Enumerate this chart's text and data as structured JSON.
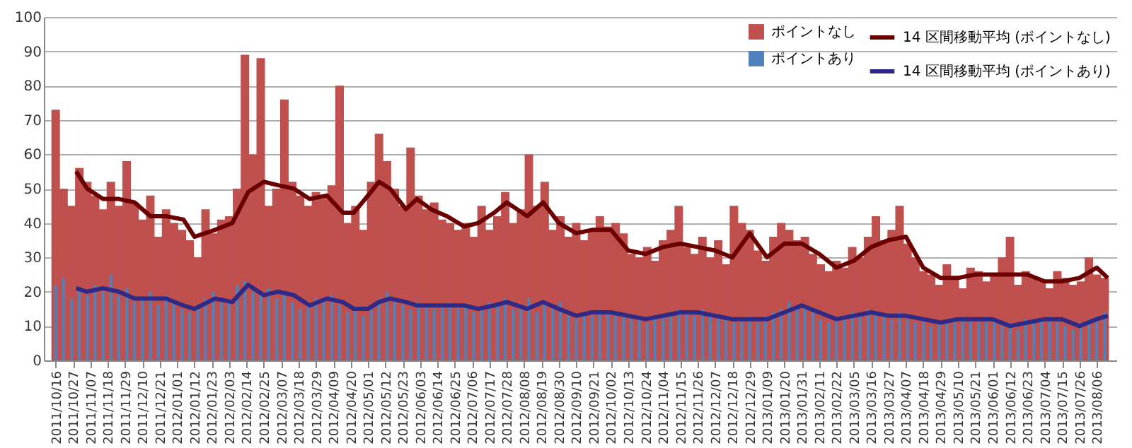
{
  "chart_data": {
    "type": "bar",
    "legend": "top right",
    "grid": "y",
    "ylim": [
      0,
      100
    ],
    "yticks": [
      0,
      10,
      20,
      30,
      40,
      50,
      60,
      70,
      80,
      90,
      100
    ],
    "xlim": [
      "2011-10-13",
      "2013-08-14"
    ],
    "xticks": [
      {
        "value": "2011-10-16",
        "label": "2011/10/16"
      },
      {
        "value": "2011-10-27",
        "label": "2011/10/27"
      },
      {
        "value": "2011-11-07",
        "label": "2011/11/07"
      },
      {
        "value": "2011-11-18",
        "label": "2011/11/18"
      },
      {
        "value": "2011-11-29",
        "label": "2011/11/29"
      },
      {
        "value": "2011-12-10",
        "label": "2011/12/10"
      },
      {
        "value": "2011-12-21",
        "label": "2011/12/21"
      },
      {
        "value": "2012-01-01",
        "label": "2012/01/01"
      },
      {
        "value": "2012-01-12",
        "label": "2012/01/12"
      },
      {
        "value": "2012-01-23",
        "label": "2012/01/23"
      },
      {
        "value": "2012-02-03",
        "label": "2012/02/03"
      },
      {
        "value": "2012-02-14",
        "label": "2012/02/14"
      },
      {
        "value": "2012-02-25",
        "label": "2012/02/25"
      },
      {
        "value": "2012-03-07",
        "label": "2012/03/07"
      },
      {
        "value": "2012-03-18",
        "label": "2012/03/18"
      },
      {
        "value": "2012-03-29",
        "label": "2012/03/29"
      },
      {
        "value": "2012-04-09",
        "label": "2012/04/09"
      },
      {
        "value": "2012-04-20",
        "label": "2012/04/20"
      },
      {
        "value": "2012-05-01",
        "label": "2012/05/01"
      },
      {
        "value": "2012-05-12",
        "label": "2012/05/12"
      },
      {
        "value": "2012-05-23",
        "label": "2012/05/23"
      },
      {
        "value": "2012-06-03",
        "label": "2012/06/03"
      },
      {
        "value": "2012-06-14",
        "label": "2012/06/14"
      },
      {
        "value": "2012-06-25",
        "label": "2012/06/25"
      },
      {
        "value": "2012-07-06",
        "label": "2012/07/06"
      },
      {
        "value": "2012-07-17",
        "label": "2012/07/17"
      },
      {
        "value": "2012-07-28",
        "label": "2012/07/28"
      },
      {
        "value": "2012-08-08",
        "label": "2012/08/08"
      },
      {
        "value": "2012-08-19",
        "label": "2012/08/19"
      },
      {
        "value": "2012-08-30",
        "label": "2012/08/30"
      },
      {
        "value": "2012-09-10",
        "label": "2012/09/10"
      },
      {
        "value": "2012-09-21",
        "label": "2012/09/21"
      },
      {
        "value": "2012-10-02",
        "label": "2012/10/02"
      },
      {
        "value": "2012-10-13",
        "label": "2012/10/13"
      },
      {
        "value": "2012-10-24",
        "label": "2012/10/24"
      },
      {
        "value": "2012-11-04",
        "label": "2012/11/04"
      },
      {
        "value": "2012-11-15",
        "label": "2012/11/15"
      },
      {
        "value": "2012-11-26",
        "label": "2012/11/26"
      },
      {
        "value": "2012-12-07",
        "label": "2012/12/07"
      },
      {
        "value": "2012-12-18",
        "label": "2012/12/18"
      },
      {
        "value": "2012-12-29",
        "label": "2012/12/29"
      },
      {
        "value": "2013-01-09",
        "label": "2013/01/09"
      },
      {
        "value": "2013-01-20",
        "label": "2013/01/20"
      },
      {
        "value": "2013-01-31",
        "label": "2013/01/31"
      },
      {
        "value": "2013-02-11",
        "label": "2013/02/11"
      },
      {
        "value": "2013-02-22",
        "label": "2013/02/22"
      },
      {
        "value": "2013-03-05",
        "label": "2013/03/05"
      },
      {
        "value": "2013-03-16",
        "label": "2013/03/16"
      },
      {
        "value": "2013-03-27",
        "label": "2013/03/27"
      },
      {
        "value": "2013-04-07",
        "label": "2013/04/07"
      },
      {
        "value": "2013-04-18",
        "label": "2013/04/18"
      },
      {
        "value": "2013-04-29",
        "label": "2013/04/29"
      },
      {
        "value": "2013-05-10",
        "label": "2013/05/10"
      },
      {
        "value": "2013-05-21",
        "label": "2013/05/21"
      },
      {
        "value": "2013-06-01",
        "label": "2013/06/01"
      },
      {
        "value": "2013-06-12",
        "label": "2013/06/12"
      },
      {
        "value": "2013-06-23",
        "label": "2013/06/23"
      },
      {
        "value": "2013-07-04",
        "label": "2013/07/04"
      },
      {
        "value": "2013-07-15",
        "label": "2013/07/15"
      },
      {
        "value": "2013-07-26",
        "label": "2013/07/26"
      },
      {
        "value": "2013-08-06",
        "label": "2013/08/06"
      }
    ],
    "x": [
      "2011-10-16",
      "2011-10-21",
      "2011-10-26",
      "2011-10-31",
      "2011-11-05",
      "2011-11-10",
      "2011-11-15",
      "2011-11-20",
      "2011-11-25",
      "2011-11-30",
      "2011-12-05",
      "2011-12-10",
      "2011-12-15",
      "2011-12-20",
      "2011-12-25",
      "2011-12-30",
      "2012-01-04",
      "2012-01-09",
      "2012-01-14",
      "2012-01-19",
      "2012-01-24",
      "2012-01-29",
      "2012-02-03",
      "2012-02-08",
      "2012-02-13",
      "2012-02-18",
      "2012-02-23",
      "2012-02-28",
      "2012-03-04",
      "2012-03-09",
      "2012-03-14",
      "2012-03-19",
      "2012-03-24",
      "2012-03-29",
      "2012-04-03",
      "2012-04-08",
      "2012-04-13",
      "2012-04-18",
      "2012-04-23",
      "2012-04-28",
      "2012-05-03",
      "2012-05-08",
      "2012-05-13",
      "2012-05-18",
      "2012-05-23",
      "2012-05-28",
      "2012-06-02",
      "2012-06-07",
      "2012-06-12",
      "2012-06-17",
      "2012-06-22",
      "2012-06-27",
      "2012-07-02",
      "2012-07-07",
      "2012-07-12",
      "2012-07-17",
      "2012-07-22",
      "2012-07-27",
      "2012-08-01",
      "2012-08-06",
      "2012-08-11",
      "2012-08-16",
      "2012-08-21",
      "2012-08-26",
      "2012-08-31",
      "2012-09-05",
      "2012-09-10",
      "2012-09-15",
      "2012-09-20",
      "2012-09-25",
      "2012-09-30",
      "2012-10-05",
      "2012-10-10",
      "2012-10-15",
      "2012-10-20",
      "2012-10-25",
      "2012-10-30",
      "2012-11-04",
      "2012-11-09",
      "2012-11-14",
      "2012-11-19",
      "2012-11-24",
      "2012-11-29",
      "2012-12-04",
      "2012-12-09",
      "2012-12-14",
      "2012-12-19",
      "2012-12-24",
      "2012-12-29",
      "2013-01-03",
      "2013-01-08",
      "2013-01-13",
      "2013-01-18",
      "2013-01-23",
      "2013-01-28",
      "2013-02-02",
      "2013-02-07",
      "2013-02-12",
      "2013-02-17",
      "2013-02-22",
      "2013-02-27",
      "2013-03-04",
      "2013-03-09",
      "2013-03-14",
      "2013-03-19",
      "2013-03-24",
      "2013-03-29",
      "2013-04-03",
      "2013-04-08",
      "2013-04-13",
      "2013-04-18",
      "2013-04-23",
      "2013-04-28",
      "2013-05-03",
      "2013-05-08",
      "2013-05-13",
      "2013-05-18",
      "2013-05-23",
      "2013-05-28",
      "2013-06-02",
      "2013-06-07",
      "2013-06-12",
      "2013-06-17",
      "2013-06-22",
      "2013-06-27",
      "2013-07-02",
      "2013-07-07",
      "2013-07-12",
      "2013-07-17",
      "2013-07-22",
      "2013-07-27",
      "2013-08-01",
      "2013-08-06",
      "2013-08-11"
    ],
    "series": [
      {
        "name": "ポイントなし",
        "color": "#c0504d",
        "values": [
          73,
          50,
          45,
          56,
          52,
          48,
          44,
          52,
          45,
          58,
          46,
          41,
          48,
          36,
          44,
          40,
          38,
          35,
          30,
          44,
          37,
          41,
          42,
          50,
          89,
          60,
          88,
          45,
          50,
          76,
          52,
          48,
          45,
          49,
          47,
          51,
          80,
          40,
          45,
          38,
          52,
          66,
          58,
          50,
          45,
          62,
          48,
          44,
          46,
          41,
          40,
          38,
          40,
          36,
          45,
          38,
          42,
          49,
          40,
          44,
          60,
          45,
          52,
          38,
          42,
          36,
          40,
          35,
          38,
          42,
          39,
          40,
          37,
          31,
          30,
          33,
          29,
          35,
          38,
          45,
          33,
          31,
          36,
          30,
          35,
          28,
          45,
          40,
          38,
          32,
          29,
          36,
          40,
          38,
          35,
          36,
          31,
          28,
          26,
          29,
          27,
          33,
          30,
          36,
          42,
          35,
          38,
          45,
          34,
          30,
          26,
          25,
          22,
          28,
          24,
          21,
          27,
          26,
          23,
          25,
          30,
          36,
          22,
          26,
          24,
          23,
          21,
          26,
          24,
          22,
          23,
          30,
          25,
          24
        ]
      },
      {
        "name": "ポイントあり",
        "color": "#4f81bd",
        "values": [
          22,
          24,
          18,
          21,
          19,
          22,
          20,
          25,
          19,
          21,
          17,
          18,
          20,
          16,
          19,
          17,
          15,
          14,
          16,
          18,
          20,
          17,
          17,
          22,
          23,
          20,
          19,
          21,
          18,
          20,
          17,
          15,
          16,
          18,
          17,
          19,
          16,
          14,
          15,
          13,
          16,
          18,
          20,
          17,
          16,
          15,
          17,
          16,
          15,
          16,
          17,
          15,
          16,
          14,
          15,
          17,
          16,
          18,
          15,
          16,
          18,
          14,
          16,
          15,
          17,
          13,
          12,
          14,
          13,
          15,
          14,
          14,
          13,
          12,
          13,
          11,
          12,
          13,
          14,
          15,
          14,
          13,
          15,
          14,
          13,
          12,
          11,
          12,
          13,
          11,
          13,
          14,
          15,
          17,
          16,
          15,
          14,
          12,
          11,
          12,
          13,
          14,
          13,
          15,
          14,
          13,
          12,
          14,
          12,
          11,
          12,
          10,
          11,
          12,
          11,
          13,
          12,
          11,
          13,
          12,
          10,
          11,
          9,
          12,
          11,
          12,
          13,
          11,
          10,
          9,
          11,
          12,
          13,
          14
        ]
      },
      {
        "name": "14 区間移動平均 (ポイントなし)",
        "type": "line",
        "color": "#6b0000",
        "x": [
          "2011-10-29",
          "2011-11-05",
          "2011-11-15",
          "2011-11-25",
          "2011-12-05",
          "2011-12-15",
          "2011-12-25",
          "2012-01-05",
          "2012-01-12",
          "2012-01-25",
          "2012-02-05",
          "2012-02-15",
          "2012-02-25",
          "2012-03-05",
          "2012-03-15",
          "2012-03-25",
          "2012-04-05",
          "2012-04-15",
          "2012-04-22",
          "2012-05-01",
          "2012-05-08",
          "2012-05-15",
          "2012-05-25",
          "2012-06-01",
          "2012-06-10",
          "2012-06-20",
          "2012-07-01",
          "2012-07-10",
          "2012-07-20",
          "2012-07-28",
          "2012-08-10",
          "2012-08-20",
          "2012-08-30",
          "2012-09-10",
          "2012-09-20",
          "2012-10-02",
          "2012-10-13",
          "2012-10-24",
          "2012-11-04",
          "2012-11-15",
          "2012-11-26",
          "2012-12-07",
          "2012-12-18",
          "2012-12-29",
          "2013-01-09",
          "2013-01-20",
          "2013-01-31",
          "2013-02-11",
          "2013-02-22",
          "2013-03-05",
          "2013-03-16",
          "2013-03-27",
          "2013-04-07",
          "2013-04-18",
          "2013-04-29",
          "2013-05-10",
          "2013-05-21",
          "2013-06-01",
          "2013-06-12",
          "2013-06-23",
          "2013-07-04",
          "2013-07-15",
          "2013-07-26",
          "2013-08-06",
          "2013-08-13"
        ],
        "values": [
          55,
          50,
          47,
          47,
          46,
          42,
          42,
          41,
          36,
          38,
          40,
          49,
          52,
          51,
          50,
          47,
          48,
          43,
          43,
          48,
          52,
          50,
          44,
          47,
          44,
          42,
          39,
          40,
          43,
          46,
          42,
          46,
          40,
          37,
          38,
          38,
          32,
          31,
          33,
          34,
          33,
          32,
          30,
          37,
          30,
          34,
          34,
          31,
          27,
          29,
          33,
          35,
          36,
          27,
          24,
          24,
          25,
          25,
          25,
          25,
          23,
          23,
          24,
          27,
          24
        ]
      },
      {
        "name": "14 区間移動平均 (ポイントあり)",
        "type": "line",
        "color": "#2e2a86",
        "x": [
          "2011-10-29",
          "2011-11-05",
          "2011-11-15",
          "2011-11-25",
          "2011-12-05",
          "2011-12-15",
          "2011-12-25",
          "2012-01-05",
          "2012-01-12",
          "2012-01-25",
          "2012-02-05",
          "2012-02-15",
          "2012-02-25",
          "2012-03-05",
          "2012-03-15",
          "2012-03-25",
          "2012-04-05",
          "2012-04-15",
          "2012-04-22",
          "2012-05-01",
          "2012-05-08",
          "2012-05-15",
          "2012-05-25",
          "2012-06-01",
          "2012-06-10",
          "2012-06-20",
          "2012-07-01",
          "2012-07-10",
          "2012-07-20",
          "2012-07-28",
          "2012-08-10",
          "2012-08-20",
          "2012-08-30",
          "2012-09-10",
          "2012-09-20",
          "2012-10-02",
          "2012-10-13",
          "2012-10-24",
          "2012-11-04",
          "2012-11-15",
          "2012-11-26",
          "2012-12-07",
          "2012-12-18",
          "2012-12-29",
          "2013-01-09",
          "2013-01-20",
          "2013-01-31",
          "2013-02-11",
          "2013-02-22",
          "2013-03-05",
          "2013-03-16",
          "2013-03-27",
          "2013-04-07",
          "2013-04-18",
          "2013-04-29",
          "2013-05-10",
          "2013-05-21",
          "2013-06-01",
          "2013-06-12",
          "2013-06-23",
          "2013-07-04",
          "2013-07-15",
          "2013-07-26",
          "2013-08-06",
          "2013-08-13"
        ],
        "values": [
          21,
          20,
          21,
          20,
          18,
          18,
          18,
          16,
          15,
          18,
          17,
          22,
          19,
          20,
          19,
          16,
          18,
          17,
          15,
          15,
          17,
          18,
          17,
          16,
          16,
          16,
          16,
          15,
          16,
          17,
          15,
          17,
          15,
          13,
          14,
          14,
          13,
          12,
          13,
          14,
          14,
          13,
          12,
          12,
          12,
          14,
          16,
          14,
          12,
          13,
          14,
          13,
          13,
          12,
          11,
          12,
          12,
          12,
          10,
          11,
          12,
          12,
          10,
          12,
          13
        ]
      }
    ]
  }
}
